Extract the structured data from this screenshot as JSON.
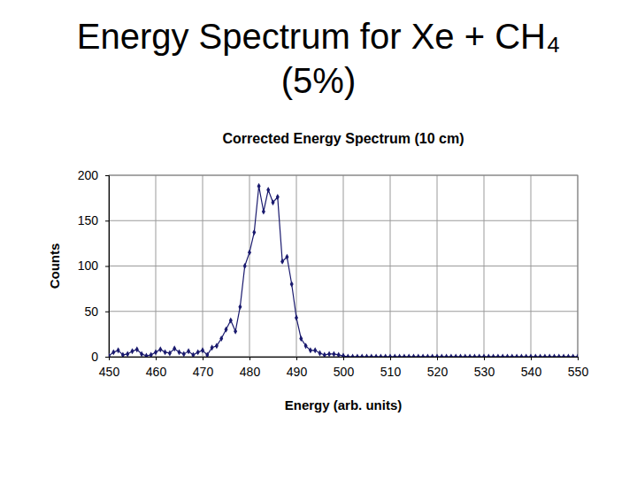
{
  "chart_data": {
    "type": "line",
    "title": "Energy Spectrum for Xe + CH₄ (5%)",
    "subtitle": "Corrected Energy Spectrum (10 cm)",
    "x_label": "Energy (arb. units)",
    "y_label": "Counts",
    "x": [
      450,
      451,
      452,
      453,
      454,
      455,
      456,
      457,
      458,
      459,
      460,
      461,
      462,
      463,
      464,
      465,
      466,
      467,
      468,
      469,
      470,
      471,
      472,
      473,
      474,
      475,
      476,
      477,
      478,
      479,
      480,
      481,
      482,
      483,
      484,
      485,
      486,
      487,
      488,
      489,
      490,
      491,
      492,
      493,
      494,
      495,
      496,
      497,
      498,
      499,
      500,
      501,
      502,
      503,
      504,
      505,
      506,
      507,
      508,
      509,
      510,
      511,
      512,
      513,
      514,
      515,
      516,
      517,
      518,
      519,
      520,
      521,
      522,
      523,
      524,
      525,
      526,
      527,
      528,
      529,
      530,
      531,
      532,
      533,
      534,
      535,
      536,
      537,
      538,
      539,
      540,
      541,
      542,
      543,
      544,
      545,
      546,
      547,
      548,
      549,
      550
    ],
    "values": [
      1,
      5,
      7,
      2,
      3,
      6,
      8,
      3,
      1,
      2,
      5,
      8,
      5,
      4,
      9,
      5,
      3,
      6,
      2,
      5,
      7,
      2,
      10,
      12,
      20,
      30,
      40,
      28,
      55,
      100,
      115,
      137,
      188,
      160,
      184,
      170,
      176,
      105,
      110,
      80,
      43,
      20,
      12,
      7,
      7,
      4,
      2,
      3,
      3,
      2,
      1,
      0,
      0,
      0,
      0,
      0,
      0,
      0,
      0,
      0,
      0,
      0,
      0,
      0,
      0,
      0,
      0,
      0,
      0,
      0,
      0,
      0,
      0,
      0,
      0,
      0,
      0,
      0,
      0,
      0,
      0,
      0,
      0,
      0,
      0,
      0,
      0,
      0,
      0,
      0,
      0,
      0,
      0,
      0,
      0,
      0,
      0,
      0,
      0,
      0,
      0
    ],
    "color": "#1a1a6e",
    "marker": "diamond",
    "line_style": "solid",
    "xlim": [
      450,
      550
    ],
    "xticks": [
      450,
      460,
      470,
      480,
      490,
      500,
      510,
      520,
      530,
      540,
      550
    ],
    "ylim": [
      0,
      200
    ],
    "yticks": [
      0,
      50,
      100,
      150,
      200
    ],
    "grid": true
  }
}
